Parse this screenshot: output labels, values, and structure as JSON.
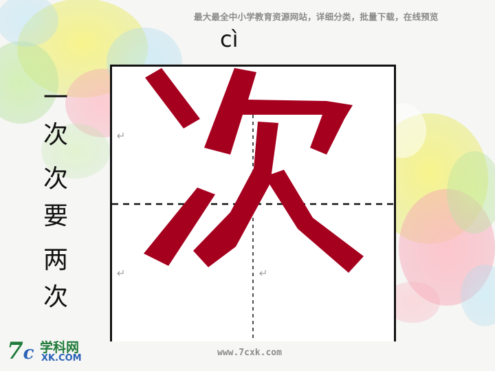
{
  "header": {
    "site_banner": "最大最全中小学教育资源网站，详细分类，批量下载，在线预览"
  },
  "lesson": {
    "pinyin": "cì",
    "character": "次",
    "words": [
      "一次",
      "次要",
      "两次"
    ]
  },
  "footer": {
    "url": "www.7cxk.com"
  },
  "logo": {
    "mark": "7",
    "mark_c": "c",
    "name": "学科网",
    "domain": "XK.COM"
  },
  "icons": [
    "return-mark-icon"
  ],
  "colors": {
    "character_fill": "#a6001f",
    "grid_border": "#111111",
    "guide_line": "#111111",
    "logo_green": "#1f7a3a",
    "logo_blue": "#2a63b8"
  }
}
